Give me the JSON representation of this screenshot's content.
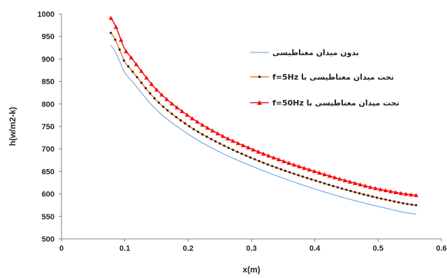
{
  "chart_data": {
    "type": "line",
    "title": "",
    "xlabel": "x(m)",
    "ylabel": "h(w/m2-k)",
    "xlim": [
      0,
      0.6
    ],
    "ylim": [
      500,
      1000
    ],
    "x_ticks": [
      "0",
      "0.1",
      "0.2",
      "0.3",
      "0.4",
      "0.5",
      "0.6"
    ],
    "y_ticks": [
      "500",
      "550",
      "600",
      "650",
      "700",
      "750",
      "800",
      "850",
      "900",
      "950",
      "1000"
    ],
    "grid": false,
    "legend_position": "top-right",
    "series": [
      {
        "name": "بدون میدان مغناطیسی",
        "color": "#5b9bd5",
        "marker": "none",
        "x": [
          0.078,
          0.1,
          0.15,
          0.2,
          0.25,
          0.3,
          0.35,
          0.4,
          0.45,
          0.5,
          0.56
        ],
        "y": [
          930,
          868,
          787,
          733,
          693,
          662,
          635,
          611,
          590,
          572,
          555
        ]
      },
      {
        "name": "تحت میدان مغناطیسی با f=5Hz",
        "color": "#ed7d31",
        "marker": "dot",
        "marker_color": "#2a1a10",
        "x": [
          0.078,
          0.1,
          0.15,
          0.2,
          0.25,
          0.3,
          0.35,
          0.4,
          0.45,
          0.5,
          0.56
        ],
        "y": [
          958,
          892,
          808,
          752,
          712,
          680,
          653,
          630,
          609,
          591,
          575
        ]
      },
      {
        "name": "تحت میدان مغناطیسی با f=50Hz",
        "color": "#e02020",
        "marker": "triangle",
        "marker_color": "#ff0000",
        "x": [
          0.078,
          0.1,
          0.15,
          0.2,
          0.25,
          0.3,
          0.35,
          0.4,
          0.45,
          0.5,
          0.56
        ],
        "y": [
          991,
          920,
          832,
          774,
          732,
          700,
          673,
          650,
          629,
          611,
          597
        ]
      }
    ]
  }
}
